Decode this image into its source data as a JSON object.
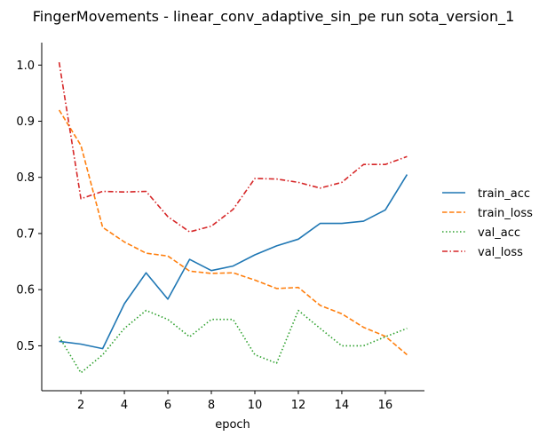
{
  "chart_data": {
    "type": "line",
    "title": "FingerMovements - linear_conv_adaptive_sin_pe run sota_version_1",
    "xlabel": "epoch",
    "ylabel": "",
    "xlim": [
      0.2,
      17.8
    ],
    "ylim": [
      0.42,
      1.04
    ],
    "xticks": [
      "2",
      "4",
      "6",
      "8",
      "10",
      "12",
      "14",
      "16"
    ],
    "yticks": [
      "0.5",
      "0.6",
      "0.7",
      "0.8",
      "0.9",
      "1.0"
    ],
    "grid": false,
    "legend_position": "right",
    "x": [
      1,
      2,
      3,
      4,
      5,
      6,
      7,
      8,
      9,
      10,
      11,
      12,
      13,
      14,
      15,
      16,
      17
    ],
    "series": [
      {
        "name": "train_acc",
        "color": "#1f77b4",
        "dash": "solid",
        "values": [
          0.508,
          0.503,
          0.495,
          0.575,
          0.63,
          0.583,
          0.654,
          0.634,
          0.642,
          0.662,
          0.678,
          0.69,
          0.718,
          0.718,
          0.722,
          0.742,
          0.805
        ]
      },
      {
        "name": "train_loss",
        "color": "#ff7f0e",
        "dash": "dashed",
        "values": [
          0.92,
          0.857,
          0.711,
          0.685,
          0.665,
          0.66,
          0.633,
          0.629,
          0.63,
          0.617,
          0.602,
          0.604,
          0.572,
          0.557,
          0.533,
          0.517,
          0.484
        ]
      },
      {
        "name": "val_acc",
        "color": "#2ca02c",
        "dash": "dotted",
        "values": [
          0.516,
          0.452,
          0.484,
          0.531,
          0.563,
          0.547,
          0.516,
          0.547,
          0.547,
          0.484,
          0.469,
          0.563,
          0.531,
          0.5,
          0.5,
          0.516,
          0.531
        ]
      },
      {
        "name": "val_loss",
        "color": "#d62728",
        "dash": "dashdot",
        "values": [
          1.005,
          0.762,
          0.775,
          0.774,
          0.775,
          0.73,
          0.703,
          0.713,
          0.743,
          0.798,
          0.797,
          0.791,
          0.781,
          0.791,
          0.823,
          0.823,
          0.837
        ]
      }
    ]
  }
}
